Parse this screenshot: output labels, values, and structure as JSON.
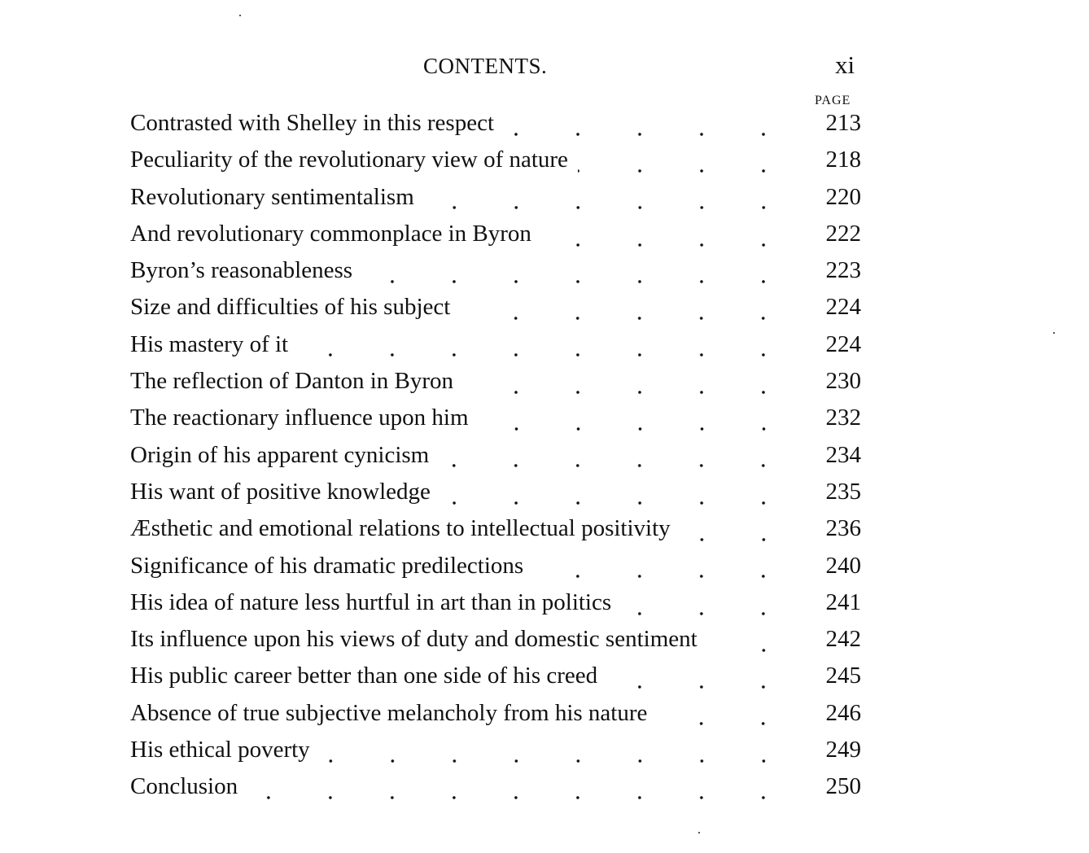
{
  "header": {
    "title": "CONTENTS.",
    "page_number": "xi",
    "column_label": "PAGE"
  },
  "entries": [
    {
      "title": "Contrasted with Shelley in this respect",
      "page": "213"
    },
    {
      "title": "Peculiarity of the revolutionary view of nature",
      "page": "218"
    },
    {
      "title": "Revolutionary sentimentalism",
      "page": "220"
    },
    {
      "title": "And revolutionary commonplace in Byron",
      "page": "222"
    },
    {
      "title": "Byron’s reasonableness",
      "page": "223"
    },
    {
      "title": "Size and difficulties of his subject",
      "page": "224"
    },
    {
      "title": "His mastery of it",
      "page": "224"
    },
    {
      "title": "The reflection of Danton in Byron",
      "page": "230"
    },
    {
      "title": "The reactionary influence upon him",
      "page": "232"
    },
    {
      "title": "Origin of his apparent cynicism",
      "page": "234"
    },
    {
      "title": "His want of positive knowledge",
      "page": "235"
    },
    {
      "title": "Æsthetic and emotional relations to intellectual positivity",
      "page": "236"
    },
    {
      "title": "Significance of his dramatic predilections",
      "page": "240"
    },
    {
      "title": "His idea of nature less hurtful in art than in politics",
      "page": "241"
    },
    {
      "title": "Its influence upon his views of duty and domestic sentiment",
      "page": "242"
    },
    {
      "title": "His public career better than one side of his creed",
      "page": "245"
    },
    {
      "title": "Absence of true subjective melancholy from his nature",
      "page": "246"
    },
    {
      "title": "His ethical poverty",
      "page": "249"
    },
    {
      "title": "Conclusion",
      "page": "250"
    }
  ]
}
